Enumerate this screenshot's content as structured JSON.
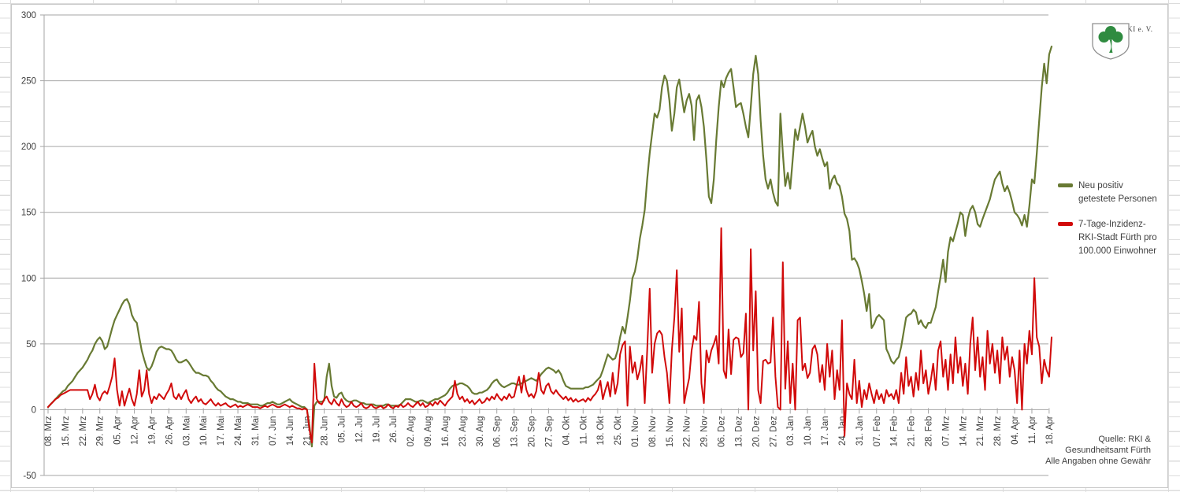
{
  "chart": {
    "legend": [
      {
        "label_lines": [
          "Neu positiv",
          "getestete Personen"
        ],
        "color": "#687a33"
      },
      {
        "label_lines": [
          "7-Tage-Inzidenz-",
          "RKI-Stadt Fürth pro",
          "100.000 Einwohner"
        ],
        "color": "#d10a0a"
      }
    ],
    "logo_text": "FÜRTHWIKI e. V.",
    "source_lines": [
      "Quelle: RKI &",
      "Gesundheitsamt Fürth",
      "Alle Angaben ohne Gewähr"
    ],
    "colors": {
      "grid": "#a6a6a6",
      "axis_text": "#3f3f3f",
      "chart_border": "#c8c8c8",
      "logo_green": "#2f8b40"
    }
  },
  "chart_data": {
    "type": "line",
    "title": "",
    "xlabel": "",
    "ylabel": "",
    "ylim": [
      -50,
      300
    ],
    "y_tick_step": 50,
    "y_tick_labels": [
      "300",
      "250",
      "200",
      "150",
      "100",
      "50",
      "0",
      "-50"
    ],
    "grid": true,
    "legend_position": "right",
    "points_per_tick": 7,
    "x_tick_labels": [
      "08. Mrz",
      "15. Mrz",
      "22. Mrz",
      "29. Mrz",
      "05. Apr",
      "12. Apr",
      "19. Apr",
      "26. Apr",
      "03. Mai",
      "10. Mai",
      "17. Mai",
      "24. Mai",
      "31. Mai",
      "07. Jun",
      "14. Jun",
      "21. Jun",
      "28. Jun",
      "05. Jul",
      "12. Jul",
      "19. Jul",
      "26. Jul",
      "02. Aug",
      "09. Aug",
      "16. Aug",
      "23. Aug",
      "30. Aug",
      "06. Sep",
      "13. Sep",
      "20. Sep",
      "27. Sep",
      "04. Okt",
      "11. Okt",
      "18. Okt",
      "25. Okt",
      "01. Nov",
      "08. Nov",
      "15. Nov",
      "22. Nov",
      "29. Nov",
      "06. Dez",
      "13. Dez",
      "20. Dez",
      "27. Dez",
      "03. Jan",
      "10. Jan",
      "17. Jan",
      "24. Jan",
      "31. Jan",
      "07. Feb",
      "14. Feb",
      "21. Feb",
      "28. Feb",
      "07. Mrz",
      "14. Mrz",
      "21. Mrz",
      "28. Mrz",
      "04. Apr",
      "11. Apr",
      "18. Apr"
    ],
    "series": [
      {
        "name": "Neu positiv getestete Personen",
        "color": "#687a33",
        "width": 2.2,
        "values": [
          2,
          4,
          6,
          8,
          10,
          12,
          14,
          15,
          18,
          20,
          22,
          25,
          28,
          30,
          32,
          35,
          38,
          42,
          45,
          50,
          53,
          55,
          52,
          46,
          48,
          55,
          62,
          68,
          72,
          76,
          80,
          83,
          84,
          80,
          72,
          68,
          66,
          55,
          45,
          38,
          32,
          30,
          33,
          38,
          44,
          47,
          48,
          47,
          46,
          46,
          45,
          42,
          38,
          36,
          36,
          37,
          38,
          36,
          33,
          30,
          28,
          28,
          27,
          26,
          26,
          25,
          22,
          20,
          17,
          15,
          14,
          12,
          10,
          9,
          8,
          8,
          7,
          6,
          6,
          5,
          5,
          5,
          4,
          4,
          4,
          4,
          3,
          3,
          4,
          5,
          5,
          6,
          5,
          4,
          4,
          5,
          6,
          7,
          8,
          6,
          5,
          4,
          3,
          2,
          2,
          0,
          -12,
          -28,
          3,
          6,
          6,
          6,
          7,
          25,
          35,
          18,
          10,
          9,
          12,
          13,
          9,
          7,
          6,
          6,
          7,
          7,
          6,
          5,
          5,
          4,
          4,
          4,
          4,
          3,
          3,
          3,
          3,
          4,
          4,
          3,
          3,
          3,
          3,
          4,
          6,
          8,
          8,
          8,
          7,
          6,
          6,
          7,
          7,
          6,
          5,
          6,
          7,
          8,
          8,
          9,
          10,
          11,
          13,
          16,
          18,
          19,
          19,
          20,
          20,
          19,
          18,
          16,
          13,
          12,
          12,
          13,
          13,
          14,
          15,
          17,
          20,
          22,
          23,
          20,
          18,
          17,
          18,
          19,
          20,
          20,
          19,
          19,
          20,
          21,
          22,
          23,
          24,
          23,
          22,
          24,
          27,
          29,
          31,
          32,
          31,
          30,
          28,
          30,
          27,
          22,
          18,
          17,
          16,
          16,
          16,
          16,
          16,
          16,
          17,
          17,
          18,
          19,
          21,
          23,
          25,
          30,
          36,
          42,
          40,
          38,
          39,
          45,
          55,
          63,
          58,
          70,
          83,
          100,
          105,
          115,
          130,
          140,
          152,
          175,
          195,
          210,
          225,
          222,
          228,
          245,
          254,
          250,
          235,
          212,
          225,
          245,
          251,
          238,
          226,
          235,
          240,
          231,
          205,
          235,
          239,
          230,
          215,
          190,
          162,
          157,
          175,
          205,
          230,
          250,
          245,
          252,
          256,
          259,
          245,
          230,
          232,
          233,
          225,
          215,
          207,
          230,
          255,
          269,
          255,
          220,
          193,
          175,
          168,
          175,
          165,
          158,
          155,
          225,
          195,
          170,
          180,
          168,
          190,
          213,
          205,
          215,
          225,
          215,
          203,
          208,
          212,
          200,
          193,
          198,
          191,
          185,
          188,
          168,
          175,
          178,
          172,
          170,
          162,
          149,
          145,
          136,
          114,
          115,
          112,
          107,
          98,
          88,
          75,
          88,
          62,
          65,
          70,
          72,
          70,
          68,
          46,
          42,
          37,
          35,
          38,
          40,
          48,
          59,
          70,
          72,
          73,
          76,
          74,
          65,
          68,
          64,
          62,
          66,
          66,
          72,
          78,
          90,
          101,
          114,
          97,
          120,
          131,
          128,
          135,
          142,
          150,
          148,
          132,
          145,
          152,
          155,
          150,
          141,
          139,
          145,
          150,
          155,
          160,
          168,
          175,
          178,
          181,
          172,
          166,
          170,
          165,
          158,
          150,
          148,
          145,
          140,
          148,
          139,
          155,
          175,
          172,
          195,
          220,
          245,
          263,
          248,
          270,
          276
        ]
      },
      {
        "name": "7-Tage-Inzidenz-RKI-Stadt Fürth pro 100.000 Einwohner",
        "color": "#d10a0a",
        "width": 2,
        "values": [
          2,
          4,
          6,
          8,
          9,
          11,
          12,
          13,
          14,
          15,
          15,
          15,
          15,
          15,
          15,
          15,
          15,
          8,
          12,
          19,
          10,
          7,
          12,
          14,
          12,
          18,
          25,
          39,
          15,
          3,
          14,
          3,
          10,
          16,
          8,
          3,
          12,
          30,
          10,
          15,
          30,
          12,
          5,
          10,
          8,
          12,
          10,
          8,
          12,
          15,
          20,
          10,
          8,
          12,
          8,
          12,
          15,
          8,
          5,
          8,
          10,
          6,
          8,
          5,
          4,
          6,
          8,
          5,
          3,
          5,
          3,
          4,
          5,
          3,
          2,
          3,
          4,
          2,
          3,
          2,
          3,
          4,
          3,
          2,
          2,
          2,
          1,
          2,
          3,
          2,
          3,
          4,
          3,
          2,
          2,
          3,
          4,
          3,
          2,
          3,
          2,
          1,
          1,
          0,
          1,
          0,
          -15,
          -25,
          35,
          8,
          5,
          4,
          8,
          10,
          6,
          4,
          8,
          5,
          3,
          8,
          4,
          2,
          3,
          6,
          3,
          2,
          3,
          5,
          2,
          1,
          2,
          4,
          2,
          1,
          2,
          3,
          1,
          2,
          4,
          2,
          1,
          3,
          2,
          4,
          2,
          3,
          5,
          3,
          2,
          4,
          6,
          3,
          5,
          2,
          3,
          5,
          3,
          6,
          4,
          7,
          5,
          3,
          6,
          8,
          10,
          22,
          12,
          8,
          10,
          6,
          8,
          5,
          7,
          4,
          6,
          8,
          5,
          6,
          9,
          7,
          10,
          8,
          12,
          9,
          7,
          10,
          8,
          12,
          9,
          10,
          18,
          25,
          13,
          26,
          15,
          10,
          12,
          9,
          14,
          28,
          15,
          12,
          18,
          20,
          14,
          12,
          15,
          12,
          10,
          8,
          10,
          7,
          9,
          6,
          8,
          6,
          7,
          8,
          6,
          9,
          7,
          10,
          12,
          15,
          22,
          8,
          15,
          21,
          10,
          28,
          12,
          20,
          42,
          49,
          52,
          3,
          48,
          28,
          36,
          23,
          30,
          41,
          5,
          45,
          92,
          28,
          50,
          58,
          60,
          57,
          40,
          28,
          5,
          45,
          70,
          106,
          44,
          77,
          5,
          15,
          24,
          45,
          56,
          53,
          82,
          20,
          5,
          45,
          36,
          45,
          50,
          56,
          35,
          138,
          30,
          24,
          61,
          27,
          53,
          55,
          54,
          40,
          43,
          73,
          0,
          122,
          45,
          90,
          15,
          5,
          37,
          38,
          35,
          36,
          70,
          25,
          2,
          0,
          112,
          16,
          52,
          5,
          35,
          0,
          68,
          70,
          30,
          35,
          24,
          28,
          46,
          49,
          42,
          21,
          34,
          15,
          50,
          25,
          45,
          8,
          30,
          15,
          68,
          -20,
          20,
          12,
          8,
          38,
          5,
          22,
          2,
          15,
          8,
          20,
          12,
          5,
          15,
          8,
          12,
          5,
          15,
          10,
          12,
          8,
          15,
          5,
          28,
          12,
          40,
          18,
          25,
          10,
          28,
          15,
          45,
          20,
          30,
          12,
          22,
          35,
          15,
          45,
          52,
          25,
          38,
          15,
          42,
          20,
          55,
          28,
          40,
          18,
          35,
          12,
          50,
          70,
          30,
          55,
          25,
          40,
          15,
          60,
          35,
          50,
          28,
          45,
          20,
          55,
          38,
          48,
          25,
          40,
          30,
          5,
          45,
          0,
          50,
          35,
          60,
          42,
          100,
          55,
          48,
          20,
          38,
          30,
          25,
          55
        ]
      }
    ]
  }
}
